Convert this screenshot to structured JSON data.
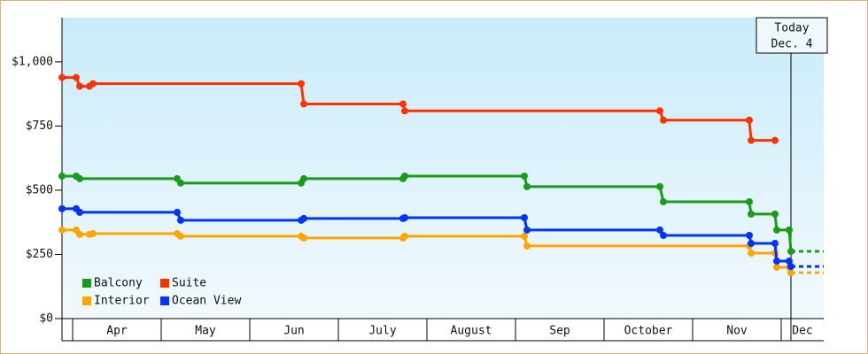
{
  "chart_data": {
    "type": "line",
    "xlim": [
      -0.12,
      8.48
    ],
    "xticks": [
      {
        "value": 0,
        "label": "Apr"
      },
      {
        "value": 1,
        "label": "May"
      },
      {
        "value": 2,
        "label": "Jun"
      },
      {
        "value": 3,
        "label": "July"
      },
      {
        "value": 4,
        "label": "August"
      },
      {
        "value": 5,
        "label": "Sep"
      },
      {
        "value": 6,
        "label": "October"
      },
      {
        "value": 7,
        "label": "Nov"
      },
      {
        "value": 8,
        "label": "Dec"
      }
    ],
    "ylim": [
      0,
      1172
    ],
    "yticks": [
      {
        "value": 0,
        "label": "$0"
      },
      {
        "value": 250,
        "label": "$250"
      },
      {
        "value": 500,
        "label": "$500"
      },
      {
        "value": 750,
        "label": "$750"
      },
      {
        "value": 1000,
        "label": "$1,000"
      }
    ],
    "annotation": {
      "x": 8.11,
      "lines": [
        "Today",
        "Dec. 4"
      ]
    },
    "series": [
      {
        "name": "Balcony",
        "color": "#1a9c1a",
        "x": [
          -0.12,
          0.04,
          0.08,
          1.18,
          1.22,
          2.58,
          2.61,
          3.73,
          3.75,
          5.1,
          5.13,
          6.63,
          6.67,
          7.64,
          7.66,
          7.93,
          7.95,
          8.09,
          8.11
        ],
        "values": [
          555,
          555,
          545,
          545,
          528,
          528,
          545,
          545,
          555,
          555,
          514,
          514,
          455,
          455,
          407,
          407,
          345,
          345,
          262
        ]
      },
      {
        "name": "Suite",
        "color": "#ff3300",
        "x": [
          -0.12,
          0.04,
          0.08,
          0.19,
          0.23,
          2.58,
          2.61,
          3.73,
          3.75,
          6.63,
          6.67,
          7.64,
          7.66,
          7.93
        ],
        "values": [
          939,
          939,
          905,
          905,
          915,
          915,
          836,
          836,
          809,
          809,
          773,
          773,
          694,
          694
        ]
      },
      {
        "name": "Interior",
        "color": "#ffa500",
        "x": [
          -0.12,
          0.04,
          0.08,
          0.19,
          0.23,
          1.18,
          1.22,
          2.58,
          2.61,
          3.73,
          3.75,
          5.1,
          5.13,
          7.64,
          7.66,
          7.93,
          7.95,
          8.09,
          8.11
        ],
        "values": [
          345,
          345,
          328,
          328,
          331,
          331,
          321,
          321,
          314,
          314,
          321,
          321,
          283,
          283,
          255,
          255,
          200,
          200,
          179
        ]
      },
      {
        "name": "Ocean View",
        "color": "#0033ff",
        "x": [
          -0.12,
          0.04,
          0.08,
          1.18,
          1.22,
          2.58,
          2.61,
          3.73,
          3.75,
          5.1,
          5.13,
          6.63,
          6.67,
          7.64,
          7.66,
          7.93,
          7.95,
          8.09,
          8.11
        ],
        "values": [
          428,
          428,
          414,
          414,
          383,
          383,
          390,
          390,
          393,
          393,
          345,
          345,
          324,
          324,
          293,
          293,
          224,
          224,
          203
        ]
      }
    ]
  }
}
